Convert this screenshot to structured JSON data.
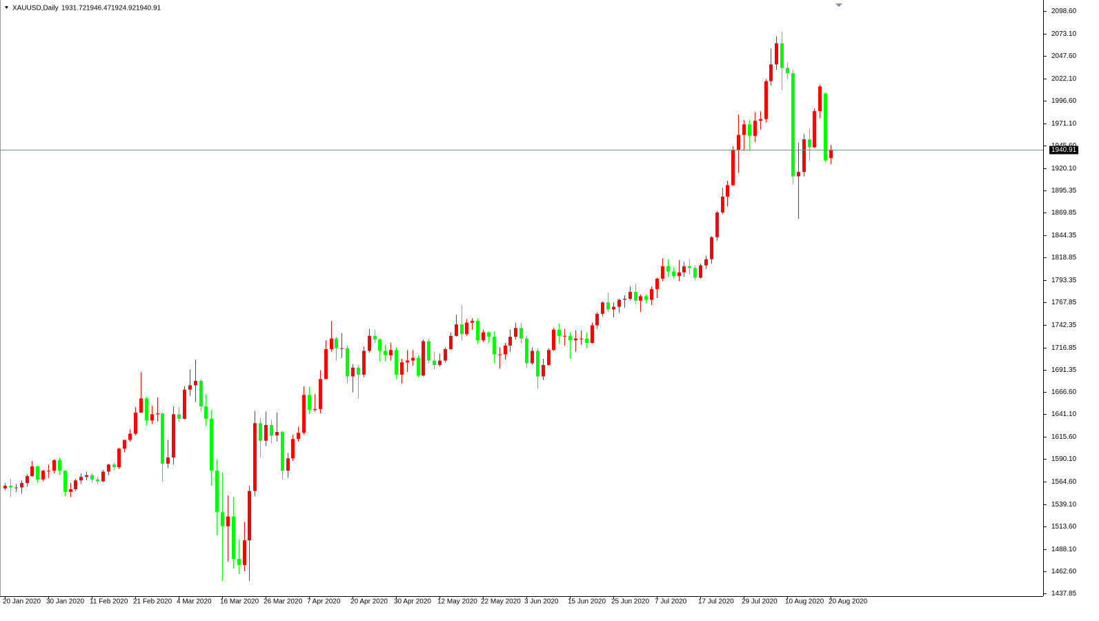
{
  "chart_data": {
    "type": "candlestick",
    "title": "XAUUSD,Daily",
    "up_color": "#ff0000",
    "down_color": "#00ff00",
    "price_line_color": "#778899",
    "categories": [
      "20 Jan 2020",
      null,
      null,
      null,
      null,
      null,
      null,
      null,
      "30 Jan 2020",
      null,
      null,
      null,
      null,
      null,
      null,
      null,
      "11 Feb 2020",
      null,
      null,
      null,
      null,
      null,
      null,
      null,
      "21 Feb 2020",
      null,
      null,
      null,
      null,
      null,
      null,
      null,
      "4 Mar 2020",
      null,
      null,
      null,
      null,
      null,
      null,
      null,
      "16 Mar 2020",
      null,
      null,
      null,
      null,
      null,
      null,
      null,
      "26 Mar 2020",
      null,
      null,
      null,
      null,
      null,
      null,
      null,
      "7 Apr 2020",
      null,
      null,
      null,
      null,
      null,
      null,
      null,
      "20 Apr 2020",
      null,
      null,
      null,
      null,
      null,
      null,
      null,
      "30 Apr 2020",
      null,
      null,
      null,
      null,
      null,
      null,
      null,
      "12 May 2020",
      null,
      null,
      null,
      null,
      null,
      null,
      null,
      "22 May 2020",
      null,
      null,
      null,
      null,
      null,
      null,
      null,
      "3 Jun 2020",
      null,
      null,
      null,
      null,
      null,
      null,
      null,
      "15 Jun 2020",
      null,
      null,
      null,
      null,
      null,
      null,
      null,
      "25 Jun 2020",
      null,
      null,
      null,
      null,
      null,
      null,
      null,
      "7 Jul 2020",
      null,
      null,
      null,
      null,
      null,
      null,
      null,
      "17 Jul 2020",
      null,
      null,
      null,
      null,
      null,
      null,
      null,
      "29 Jul 2020",
      null,
      null,
      null,
      null,
      null,
      null,
      null,
      "10 Aug 2020",
      null,
      null,
      null,
      null,
      null,
      null,
      null,
      "20 Aug 2020"
    ],
    "open": [
      1557,
      1560,
      1558,
      1558,
      1563,
      1571,
      1582,
      1567,
      1577,
      1577,
      1589,
      1577,
      1553,
      1556,
      1566,
      1570,
      1572,
      1567,
      1565,
      1576,
      1584,
      1581,
      1602,
      1612,
      1619,
      1643,
      1659,
      1634,
      1641,
      1642,
      1585,
      1592,
      1641,
      1636,
      1669,
      1674,
      1679,
      1650,
      1636,
      1577,
      1530,
      1514,
      1525,
      1477,
      1470,
      1498,
      1554,
      1631,
      1611,
      1629,
      1617,
      1621,
      1577,
      1591,
      1613,
      1620,
      1663,
      1646,
      1647,
      1681,
      1715,
      1727,
      1716,
      1716,
      1684,
      1694,
      1686,
      1713,
      1730,
      1726,
      1713,
      1708,
      1714,
      1686,
      1700,
      1702,
      1705,
      1685,
      1724,
      1702,
      1697,
      1702,
      1715,
      1730,
      1743,
      1732,
      1745,
      1747,
      1725,
      1734,
      1729,
      1709,
      1709,
      1719,
      1729,
      1739,
      1727,
      1699,
      1713,
      1684,
      1697,
      1714,
      1737,
      1730,
      1730,
      1725,
      1727,
      1727,
      1722,
      1742,
      1755,
      1768,
      1760,
      1763,
      1771,
      1772,
      1780,
      1770,
      1775,
      1771,
      1783,
      1795,
      1809,
      1803,
      1798,
      1802,
      1809,
      1807,
      1796,
      1810,
      1817,
      1842,
      1870,
      1888,
      1901,
      1941,
      1958,
      1970,
      1957,
      1974,
      1976,
      2019,
      2038,
      2062,
      2034,
      2028,
      1911,
      1916,
      1953,
      1944,
      1985,
      2005,
      1931.72
    ],
    "high": [
      1563,
      1568,
      1562,
      1566,
      1573,
      1588,
      1583,
      1578,
      1584,
      1590,
      1592,
      1577,
      1563,
      1568,
      1574,
      1576,
      1574,
      1570,
      1578,
      1585,
      1586,
      1603,
      1612,
      1624,
      1649,
      1689,
      1661,
      1651,
      1660,
      1643,
      1612,
      1650,
      1649,
      1673,
      1692,
      1703,
      1681,
      1664,
      1646,
      1590,
      1575,
      1549,
      1547,
      1499,
      1519,
      1560,
      1645,
      1637,
      1644,
      1635,
      1643,
      1622,
      1597,
      1618,
      1627,
      1673,
      1672,
      1664,
      1691,
      1725,
      1747,
      1729,
      1733,
      1719,
      1698,
      1697,
      1718,
      1738,
      1737,
      1727,
      1720,
      1722,
      1717,
      1704,
      1714,
      1714,
      1708,
      1726,
      1727,
      1712,
      1710,
      1717,
      1734,
      1754,
      1765,
      1749,
      1750,
      1750,
      1737,
      1735,
      1735,
      1717,
      1722,
      1737,
      1745,
      1745,
      1730,
      1717,
      1716,
      1704,
      1716,
      1739,
      1744,
      1738,
      1734,
      1736,
      1736,
      1734,
      1745,
      1757,
      1769,
      1779,
      1768,
      1772,
      1776,
      1786,
      1789,
      1777,
      1777,
      1786,
      1796,
      1818,
      1817,
      1808,
      1816,
      1814,
      1817,
      1810,
      1812,
      1821,
      1843,
      1872,
      1898,
      1906,
      1945,
      1981,
      1975,
      1975,
      1984,
      1985,
      2021,
      2056,
      2070,
      2075,
      2040,
      2032,
      1949,
      1959,
      1965,
      1988,
      2015,
      2006,
      1946.47
    ],
    "low": [
      1555,
      1547,
      1553,
      1551,
      1559,
      1570,
      1563,
      1565,
      1569,
      1574,
      1572,
      1548,
      1547,
      1554,
      1562,
      1566,
      1563,
      1562,
      1564,
      1572,
      1578,
      1579,
      1598,
      1610,
      1617,
      1643,
      1628,
      1630,
      1633,
      1565,
      1580,
      1584,
      1632,
      1635,
      1662,
      1655,
      1644,
      1628,
      1560,
      1504,
      1452,
      1474,
      1466,
      1460,
      1463,
      1452,
      1548,
      1592,
      1605,
      1608,
      1610,
      1567,
      1569,
      1588,
      1610,
      1618,
      1641,
      1644,
      1642,
      1681,
      1712,
      1702,
      1705,
      1676,
      1666,
      1659,
      1683,
      1711,
      1722,
      1701,
      1701,
      1702,
      1681,
      1676,
      1689,
      1696,
      1683,
      1684,
      1699,
      1692,
      1695,
      1700,
      1714,
      1729,
      1725,
      1730,
      1737,
      1721,
      1723,
      1722,
      1699,
      1693,
      1703,
      1712,
      1726,
      1722,
      1694,
      1697,
      1670,
      1680,
      1696,
      1713,
      1721,
      1719,
      1704,
      1712,
      1720,
      1716,
      1721,
      1738,
      1752,
      1757,
      1751,
      1756,
      1762,
      1770,
      1766,
      1757,
      1767,
      1765,
      1773,
      1792,
      1797,
      1795,
      1792,
      1797,
      1800,
      1793,
      1795,
      1806,
      1812,
      1838,
      1868,
      1877,
      1900,
      1915,
      1940,
      1940,
      1950,
      1964,
      1972,
      2014,
      2032,
      2009,
      2022,
      1902,
      1863,
      1911,
      1929,
      1943,
      1977,
      1927,
      1924.92
    ],
    "close": [
      1560,
      1558,
      1558,
      1563,
      1571,
      1582,
      1567,
      1577,
      1577,
      1589,
      1577,
      1553,
      1556,
      1566,
      1570,
      1572,
      1567,
      1565,
      1576,
      1584,
      1581,
      1602,
      1612,
      1619,
      1643,
      1659,
      1634,
      1641,
      1642,
      1585,
      1592,
      1641,
      1636,
      1669,
      1674,
      1679,
      1650,
      1636,
      1577,
      1530,
      1514,
      1525,
      1477,
      1470,
      1498,
      1554,
      1631,
      1611,
      1629,
      1617,
      1621,
      1577,
      1591,
      1613,
      1620,
      1663,
      1646,
      1647,
      1681,
      1715,
      1727,
      1716,
      1716,
      1684,
      1694,
      1686,
      1713,
      1730,
      1726,
      1713,
      1708,
      1714,
      1686,
      1700,
      1702,
      1705,
      1685,
      1724,
      1702,
      1697,
      1702,
      1715,
      1730,
      1743,
      1732,
      1745,
      1747,
      1725,
      1734,
      1729,
      1709,
      1709,
      1719,
      1729,
      1739,
      1727,
      1699,
      1713,
      1684,
      1697,
      1714,
      1737,
      1730,
      1730,
      1725,
      1727,
      1727,
      1722,
      1742,
      1755,
      1768,
      1760,
      1763,
      1771,
      1772,
      1780,
      1770,
      1775,
      1771,
      1783,
      1795,
      1809,
      1803,
      1798,
      1802,
      1809,
      1807,
      1796,
      1810,
      1817,
      1842,
      1870,
      1888,
      1901,
      1941,
      1958,
      1970,
      1957,
      1974,
      1976,
      2019,
      2038,
      2062,
      2034,
      2028,
      1911,
      1916,
      1953,
      1944,
      1985,
      2013,
      1929,
      1940.91
    ],
    "ylim": [
      1434.7,
      2111.1
    ],
    "yticks": [
      {
        "value": 2098.6,
        "label": "2098.60"
      },
      {
        "value": 2073.1,
        "label": "2073.10"
      },
      {
        "value": 2047.6,
        "label": "2047.60"
      },
      {
        "value": 2022.1,
        "label": "2022.10"
      },
      {
        "value": 1996.6,
        "label": "1996.60"
      },
      {
        "value": 1971.1,
        "label": "1971.10"
      },
      {
        "value": 1945.6,
        "label": "1945.60"
      },
      {
        "value": 1920.1,
        "label": "1920.10"
      },
      1895.35,
      1869.85,
      1844.35,
      1818.85,
      1793.35,
      1767.85,
      1742.35,
      1716.85,
      1691.35,
      {
        "value": 1666.6,
        "label": "1666.60"
      },
      {
        "value": 1641.1,
        "label": "1641.10"
      },
      {
        "value": 1615.6,
        "label": "1615.60"
      },
      {
        "value": 1590.1,
        "label": "1590.10"
      },
      {
        "value": 1564.6,
        "label": "1564.60"
      },
      {
        "value": 1539.1,
        "label": "1539.10"
      },
      {
        "value": 1513.6,
        "label": "1513.60"
      },
      {
        "value": 1488.1,
        "label": "1488.10"
      },
      {
        "value": 1462.6,
        "label": "1462.60"
      },
      1437.85
    ]
  }
}
